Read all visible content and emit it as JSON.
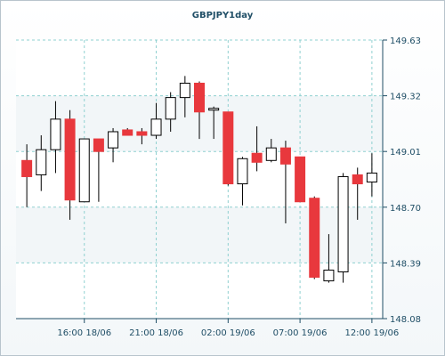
{
  "chart_data": {
    "type": "candlestick",
    "title": "GBPJPY1day",
    "xlabel": "",
    "ylabel": "",
    "ylim": [
      148.08,
      149.63
    ],
    "y_ticks": [
      "149.63",
      "149.32",
      "149.01",
      "148.70",
      "148.39",
      "148.08"
    ],
    "x_ticks": [
      "16:00 18/06",
      "21:00 18/06",
      "02:00 19/06",
      "07:00 19/06",
      "12:00 19/06"
    ],
    "grid": true,
    "colors": {
      "bullish": "#ffffff",
      "bearish": "#e8383d",
      "wick": "#000000",
      "grid": "#8fd0d0"
    },
    "series": [
      {
        "open": 148.96,
        "high": 149.05,
        "low": 148.7,
        "close": 148.87
      },
      {
        "open": 148.88,
        "high": 149.1,
        "low": 148.79,
        "close": 149.02
      },
      {
        "open": 149.02,
        "high": 149.29,
        "low": 148.89,
        "close": 149.19
      },
      {
        "open": 149.19,
        "high": 149.24,
        "low": 148.63,
        "close": 148.74
      },
      {
        "open": 148.73,
        "high": 149.08,
        "low": 148.73,
        "close": 149.08
      },
      {
        "open": 149.08,
        "high": 149.08,
        "low": 148.73,
        "close": 149.01
      },
      {
        "open": 149.03,
        "high": 149.14,
        "low": 148.95,
        "close": 149.12
      },
      {
        "open": 149.13,
        "high": 149.14,
        "low": 149.1,
        "close": 149.1
      },
      {
        "open": 149.12,
        "high": 149.14,
        "low": 149.05,
        "close": 149.1
      },
      {
        "open": 149.1,
        "high": 149.28,
        "low": 149.08,
        "close": 149.19
      },
      {
        "open": 149.19,
        "high": 149.34,
        "low": 149.12,
        "close": 149.31
      },
      {
        "open": 149.31,
        "high": 149.43,
        "low": 149.2,
        "close": 149.39
      },
      {
        "open": 149.39,
        "high": 149.4,
        "low": 149.08,
        "close": 149.23
      },
      {
        "open": 149.24,
        "high": 149.26,
        "low": 149.08,
        "close": 149.25
      },
      {
        "open": 149.23,
        "high": 149.23,
        "low": 148.82,
        "close": 148.83
      },
      {
        "open": 148.83,
        "high": 148.98,
        "low": 148.71,
        "close": 148.97
      },
      {
        "open": 149.0,
        "high": 149.15,
        "low": 148.9,
        "close": 148.95
      },
      {
        "open": 148.96,
        "high": 149.08,
        "low": 148.95,
        "close": 149.03
      },
      {
        "open": 149.03,
        "high": 149.07,
        "low": 148.61,
        "close": 148.94
      },
      {
        "open": 148.98,
        "high": 148.98,
        "low": 148.73,
        "close": 148.73
      },
      {
        "open": 148.75,
        "high": 148.76,
        "low": 148.3,
        "close": 148.31
      },
      {
        "open": 148.29,
        "high": 148.55,
        "low": 148.28,
        "close": 148.35
      },
      {
        "open": 148.34,
        "high": 148.89,
        "low": 148.28,
        "close": 148.87
      },
      {
        "open": 148.88,
        "high": 148.92,
        "low": 148.63,
        "close": 148.83
      },
      {
        "open": 148.84,
        "high": 149.0,
        "low": 148.76,
        "close": 148.89
      }
    ]
  }
}
